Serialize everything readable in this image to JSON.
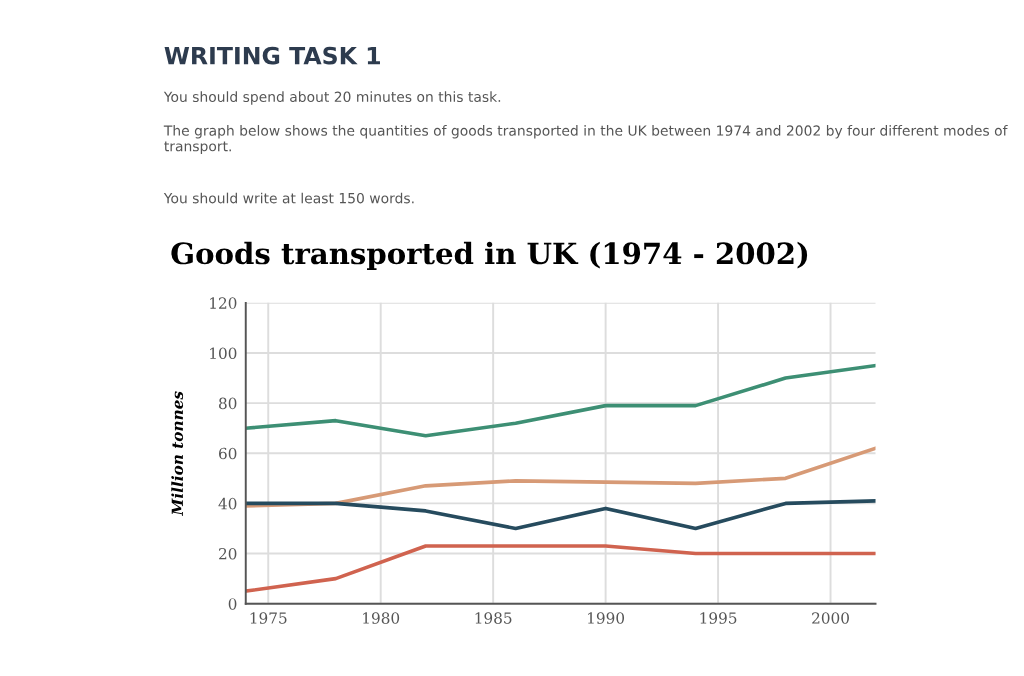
{
  "chart_data": {
    "type": "line",
    "title": "Goods transported in UK (1974 - 2002)",
    "annotations": [
      "WRITING TASK 1",
      "You should spend about 20 minutes on this task.",
      "The graph below shows the quantities of goods transported in the UK between 1974 and 2002 by four different modes of transport.",
      "You should write at least 150 words."
    ],
    "ylabel": "Million tonnes",
    "x": [
      1974,
      1978,
      1982,
      1986,
      1990,
      1994,
      1998,
      2002
    ],
    "series": [
      {
        "color": "#3d8f74",
        "values": [
          70,
          73,
          67,
          72,
          79,
          79,
          90,
          95
        ]
      },
      {
        "color": "#d79a76",
        "values": [
          39,
          40,
          47,
          49,
          48.5,
          48,
          50,
          62
        ]
      },
      {
        "color": "#264b5e",
        "values": [
          40,
          40,
          37,
          30,
          38,
          30,
          40,
          41
        ]
      },
      {
        "color": "#d0634f",
        "values": [
          5,
          10,
          23,
          23,
          23,
          20,
          20,
          20
        ]
      }
    ],
    "xlim": [
      1974,
      2002
    ],
    "xticks": [
      1975,
      1980,
      1985,
      1990,
      1995,
      2000
    ],
    "ylim": [
      0,
      120
    ],
    "yticks": [
      0,
      20,
      40,
      60,
      80,
      100,
      120
    ],
    "grid": true,
    "legend": false,
    "marker": "none",
    "line_style": "solid"
  }
}
